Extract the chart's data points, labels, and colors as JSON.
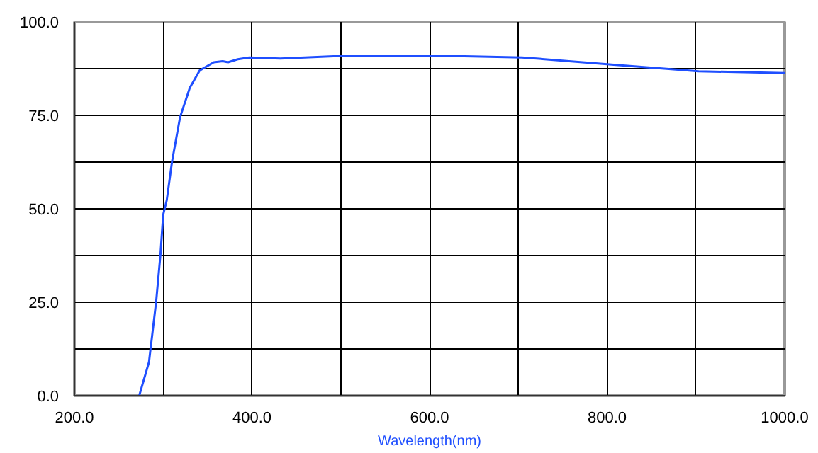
{
  "chart_data": {
    "type": "line",
    "xlabel": "Wavelength(nm)",
    "x": [
      273,
      284,
      292,
      297,
      300,
      304,
      310,
      319,
      330,
      341,
      357,
      367,
      373,
      384,
      397,
      432,
      501,
      602,
      704,
      805,
      903,
      1000
    ],
    "series": [
      {
        "color": "#1f4fff",
        "values": [
          0,
          9,
          25,
          38,
          48.4,
          52.3,
          62.7,
          74.5,
          82.4,
          87,
          89.2,
          89.5,
          89.2,
          90,
          90.5,
          90.2,
          90.9,
          91,
          90.5,
          88.6,
          86.8,
          86.3
        ]
      }
    ],
    "xlim": [
      200,
      1000
    ],
    "ylim": [
      0,
      100
    ],
    "xticks": [
      {
        "value": 200,
        "label": "200.0"
      },
      {
        "value": 300,
        "label": null
      },
      {
        "value": 400,
        "label": "400.0"
      },
      {
        "value": 500,
        "label": null
      },
      {
        "value": 600,
        "label": "600.0"
      },
      {
        "value": 700,
        "label": null
      },
      {
        "value": 800,
        "label": "800.0"
      },
      {
        "value": 900,
        "label": null
      },
      {
        "value": 1000,
        "label": "1000.0"
      }
    ],
    "yticks": [
      {
        "value": 0,
        "label": "0.0"
      },
      {
        "value": 12.5,
        "label": null
      },
      {
        "value": 25,
        "label": "25.0"
      },
      {
        "value": 37.5,
        "label": null
      },
      {
        "value": 50,
        "label": "50.0"
      },
      {
        "value": 62.5,
        "label": null
      },
      {
        "value": 75,
        "label": "75.0"
      },
      {
        "value": 87.5,
        "label": null
      },
      {
        "value": 100,
        "label": "100.0"
      }
    ],
    "grid": true,
    "marker": "none",
    "line_style": "solid"
  }
}
